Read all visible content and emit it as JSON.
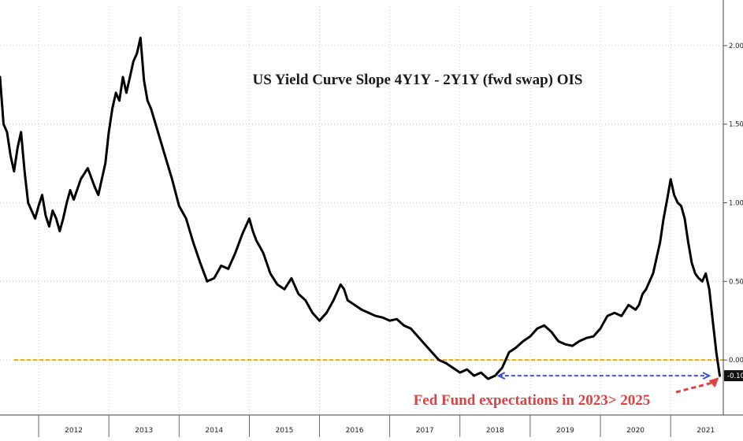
{
  "chart_data": {
    "type": "line",
    "title": "US Yield Curve Slope 4Y1Y - 2Y1Y (fwd swap) OIS",
    "xlabel": "",
    "ylabel": "",
    "x_range": [
      2011.45,
      2021.75
    ],
    "ylim": [
      -0.35,
      2.25
    ],
    "y_ticks": [
      "2.00",
      "1.50",
      "1.00",
      "0.50",
      "0.00"
    ],
    "y_tick_values": [
      2.0,
      1.5,
      1.0,
      0.5,
      0.0
    ],
    "year_labels": [
      "2012",
      "2013",
      "2014",
      "2015",
      "2016",
      "2017",
      "2018",
      "2019",
      "2020",
      "2021"
    ],
    "grid": true,
    "series": [
      {
        "color": "#000000",
        "x": [
          2011.45,
          2011.5,
          2011.55,
          2011.6,
          2011.65,
          2011.7,
          2011.75,
          2011.8,
          2011.85,
          2011.9,
          2011.95,
          2012.0,
          2012.05,
          2012.1,
          2012.15,
          2012.2,
          2012.25,
          2012.3,
          2012.35,
          2012.4,
          2012.45,
          2012.5,
          2012.6,
          2012.7,
          2012.8,
          2012.85,
          2012.9,
          2012.95,
          2013.0,
          2013.05,
          2013.1,
          2013.15,
          2013.2,
          2013.25,
          2013.3,
          2013.35,
          2013.4,
          2013.45,
          2013.5,
          2013.55,
          2013.6,
          2013.7,
          2013.8,
          2013.9,
          2014.0,
          2014.1,
          2014.2,
          2014.3,
          2014.4,
          2014.5,
          2014.6,
          2014.7,
          2014.8,
          2014.9,
          2015.0,
          2015.05,
          2015.1,
          2015.15,
          2015.2,
          2015.3,
          2015.4,
          2015.5,
          2015.6,
          2015.7,
          2015.8,
          2015.9,
          2016.0,
          2016.1,
          2016.2,
          2016.3,
          2016.35,
          2016.4,
          2016.5,
          2016.6,
          2016.7,
          2016.8,
          2016.9,
          2017.0,
          2017.1,
          2017.2,
          2017.3,
          2017.4,
          2017.5,
          2017.6,
          2017.7,
          2017.8,
          2017.9,
          2018.0,
          2018.1,
          2018.2,
          2018.3,
          2018.4,
          2018.5,
          2018.6,
          2018.7,
          2018.8,
          2018.9,
          2019.0,
          2019.1,
          2019.2,
          2019.3,
          2019.4,
          2019.5,
          2019.6,
          2019.7,
          2019.8,
          2019.9,
          2020.0,
          2020.1,
          2020.2,
          2020.3,
          2020.4,
          2020.5,
          2020.55,
          2020.6,
          2020.65,
          2020.7,
          2020.75,
          2020.8,
          2020.85,
          2020.9,
          2020.95,
          2021.0,
          2021.05,
          2021.1,
          2021.15,
          2021.2,
          2021.25,
          2021.3,
          2021.35,
          2021.4,
          2021.45,
          2021.5,
          2021.55,
          2021.6,
          2021.65,
          2021.7
        ],
        "y": [
          1.8,
          1.5,
          1.45,
          1.3,
          1.2,
          1.35,
          1.45,
          1.2,
          1.0,
          0.95,
          0.9,
          0.98,
          1.05,
          0.92,
          0.85,
          0.95,
          0.9,
          0.82,
          0.9,
          1.0,
          1.08,
          1.02,
          1.15,
          1.22,
          1.1,
          1.05,
          1.15,
          1.25,
          1.45,
          1.6,
          1.7,
          1.65,
          1.8,
          1.7,
          1.8,
          1.9,
          1.95,
          2.05,
          1.78,
          1.65,
          1.6,
          1.45,
          1.3,
          1.15,
          0.98,
          0.9,
          0.75,
          0.62,
          0.5,
          0.52,
          0.6,
          0.58,
          0.68,
          0.8,
          0.9,
          0.82,
          0.76,
          0.72,
          0.68,
          0.55,
          0.48,
          0.45,
          0.52,
          0.42,
          0.38,
          0.3,
          0.25,
          0.3,
          0.38,
          0.48,
          0.45,
          0.38,
          0.35,
          0.32,
          0.3,
          0.28,
          0.27,
          0.25,
          0.26,
          0.22,
          0.2,
          0.15,
          0.1,
          0.05,
          0.0,
          -0.02,
          -0.05,
          -0.08,
          -0.06,
          -0.1,
          -0.08,
          -0.12,
          -0.1,
          -0.05,
          0.05,
          0.08,
          0.12,
          0.15,
          0.2,
          0.22,
          0.18,
          0.12,
          0.1,
          0.09,
          0.12,
          0.14,
          0.15,
          0.2,
          0.28,
          0.3,
          0.28,
          0.35,
          0.32,
          0.35,
          0.42,
          0.45,
          0.5,
          0.55,
          0.65,
          0.75,
          0.9,
          1.02,
          1.15,
          1.05,
          1.0,
          0.98,
          0.9,
          0.75,
          0.62,
          0.55,
          0.52,
          0.5,
          0.55,
          0.45,
          0.25,
          0.05,
          -0.1
        ]
      }
    ],
    "reference_lines": [
      {
        "y": 0.0,
        "color": "#f0a500"
      },
      {
        "y": -0.1,
        "color": "#3a50e0"
      }
    ],
    "last_value_label": "-0.10",
    "annotation": {
      "text": "Fed Fund expectations in 2023> 2025",
      "color": "#e04040"
    }
  }
}
